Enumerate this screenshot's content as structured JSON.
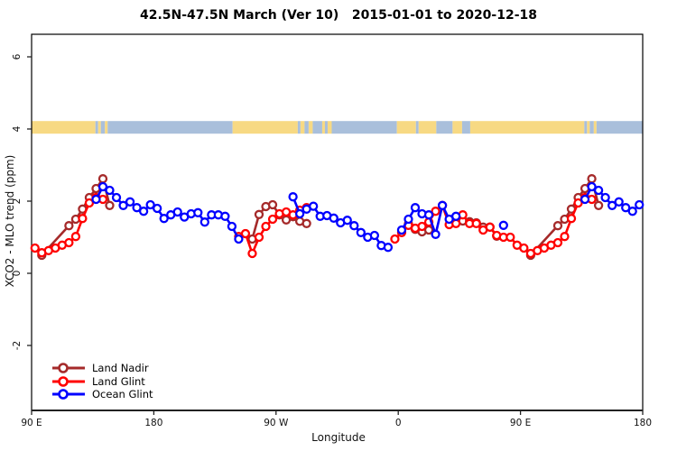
{
  "chart_data": {
    "type": "line",
    "title": "42.5N-47.5N March (Ver 10)   2015-01-01 to 2020-12-18",
    "xlabel": "Longitude",
    "ylabel": "XCO2 - MLO trend (ppm)",
    "grid": false,
    "x_axis": {
      "range_deg": [
        90,
        540
      ],
      "ticks": [
        {
          "deg": 90,
          "label": "90 E"
        },
        {
          "deg": 180,
          "label": "180"
        },
        {
          "deg": 270,
          "label": "90 W"
        },
        {
          "deg": 360,
          "label": "0"
        },
        {
          "deg": 450,
          "label": "90 E"
        },
        {
          "deg": 540,
          "label": "180"
        }
      ]
    },
    "y_axis": {
      "range": [
        -3.8,
        6.6
      ],
      "ticks": [
        -2,
        0,
        2,
        4,
        6
      ]
    },
    "legend": {
      "position": "bottom-left"
    },
    "map_strip": {
      "description": "land/ocean band of latitude zone drawn at y = 4 ppm",
      "y_range_ppm": [
        3.87,
        4.22
      ],
      "land_color": "#F7D983",
      "ocean_color": "#A9BFDB",
      "segments": [
        {
          "from": 90,
          "to": 137,
          "type": "land"
        },
        {
          "from": 137,
          "to": 139,
          "type": "ocean"
        },
        {
          "from": 139,
          "to": 141,
          "type": "land"
        },
        {
          "from": 141,
          "to": 144,
          "type": "ocean"
        },
        {
          "from": 144,
          "to": 146,
          "type": "land"
        },
        {
          "from": 146,
          "to": 238,
          "type": "ocean"
        },
        {
          "from": 238,
          "to": 286,
          "type": "land"
        },
        {
          "from": 286,
          "to": 288,
          "type": "ocean"
        },
        {
          "from": 288,
          "to": 291,
          "type": "land"
        },
        {
          "from": 291,
          "to": 294,
          "type": "ocean"
        },
        {
          "from": 294,
          "to": 297,
          "type": "land"
        },
        {
          "from": 297,
          "to": 304,
          "type": "ocean"
        },
        {
          "from": 304,
          "to": 306,
          "type": "land"
        },
        {
          "from": 306,
          "to": 308,
          "type": "ocean"
        },
        {
          "from": 308,
          "to": 311,
          "type": "land"
        },
        {
          "from": 311,
          "to": 359,
          "type": "ocean"
        },
        {
          "from": 359,
          "to": 373,
          "type": "land"
        },
        {
          "from": 373,
          "to": 375,
          "type": "ocean"
        },
        {
          "from": 375,
          "to": 388,
          "type": "land"
        },
        {
          "from": 388,
          "to": 400,
          "type": "ocean"
        },
        {
          "from": 400,
          "to": 407,
          "type": "land"
        },
        {
          "from": 407,
          "to": 413,
          "type": "ocean"
        },
        {
          "from": 413,
          "to": 497,
          "type": "land"
        },
        {
          "from": 497,
          "to": 499,
          "type": "ocean"
        },
        {
          "from": 499,
          "to": 501,
          "type": "land"
        },
        {
          "from": 501,
          "to": 504,
          "type": "ocean"
        },
        {
          "from": 504,
          "to": 506,
          "type": "land"
        },
        {
          "from": 506,
          "to": 540,
          "type": "ocean"
        }
      ]
    },
    "series": [
      {
        "name": "Land Nadir",
        "color": "#A52A2A",
        "marker": "open-circle",
        "segments": [
          [
            [
              97.5,
              0.5
            ],
            [
              117.5,
              1.32
            ],
            [
              122.5,
              1.5
            ],
            [
              127.5,
              1.78
            ],
            [
              132.5,
              2.1
            ],
            [
              137.5,
              2.35
            ],
            [
              142.5,
              2.62
            ],
            [
              147.5,
              1.88
            ]
          ],
          [
            [
              252.5,
              0.95
            ],
            [
              257.5,
              1.63
            ],
            [
              262.5,
              1.85
            ],
            [
              267.5,
              1.9
            ],
            [
              272.5,
              1.62
            ],
            [
              277.5,
              1.48
            ],
            [
              282.5,
              1.57
            ],
            [
              287.5,
              1.44
            ],
            [
              292.5,
              1.38
            ]
          ],
          [
            [
              367.5,
              1.37
            ],
            [
              372.5,
              1.22
            ],
            [
              377.5,
              1.15
            ],
            [
              382.5,
              1.2
            ]
          ],
          [
            [
              407.5,
              1.45
            ],
            [
              412.5,
              1.43
            ],
            [
              417.5,
              1.4
            ],
            [
              422.5,
              1.28
            ],
            [
              427.5,
              1.28
            ],
            [
              432.5,
              1.03
            ]
          ],
          [
            [
              457.5,
              0.5
            ],
            [
              477.5,
              1.32
            ],
            [
              482.5,
              1.5
            ],
            [
              487.5,
              1.78
            ],
            [
              492.5,
              2.1
            ],
            [
              497.5,
              2.35
            ],
            [
              502.5,
              2.62
            ],
            [
              507.5,
              1.88
            ]
          ]
        ]
      },
      {
        "name": "Land Glint",
        "color": "#FF0000",
        "marker": "open-circle",
        "segments": [
          [
            [
              92.5,
              0.7
            ],
            [
              97.5,
              0.57
            ],
            [
              102.5,
              0.63
            ],
            [
              107.5,
              0.7
            ],
            [
              112.5,
              0.78
            ],
            [
              117.5,
              0.85
            ],
            [
              122.5,
              1.02
            ],
            [
              127.5,
              1.52
            ],
            [
              132.5,
              1.95
            ],
            [
              137.5,
              2.1
            ],
            [
              142.5,
              2.05
            ]
          ],
          [
            [
              242.5,
              1.02
            ],
            [
              247.5,
              1.1
            ],
            [
              252.5,
              0.55
            ],
            [
              257.5,
              1.0
            ],
            [
              262.5,
              1.3
            ],
            [
              267.5,
              1.5
            ],
            [
              272.5,
              1.65
            ],
            [
              277.5,
              1.7
            ],
            [
              282.5,
              1.62
            ],
            [
              287.5,
              1.75
            ],
            [
              292.5,
              1.82
            ]
          ],
          [
            [
              357.5,
              0.95
            ],
            [
              362.5,
              1.13
            ],
            [
              367.5,
              1.33
            ],
            [
              372.5,
              1.25
            ],
            [
              377.5,
              1.3
            ],
            [
              382.5,
              1.42
            ],
            [
              387.5,
              1.72
            ],
            [
              392.5,
              1.88
            ],
            [
              397.5,
              1.35
            ],
            [
              402.5,
              1.38
            ],
            [
              407.5,
              1.62
            ],
            [
              412.5,
              1.38
            ],
            [
              417.5,
              1.38
            ],
            [
              422.5,
              1.2
            ],
            [
              427.5,
              1.28
            ],
            [
              432.5,
              1.05
            ],
            [
              437.5,
              1.0
            ],
            [
              442.5,
              1.0
            ],
            [
              447.5,
              0.78
            ],
            [
              452.5,
              0.7
            ],
            [
              457.5,
              0.55
            ],
            [
              462.5,
              0.63
            ],
            [
              467.5,
              0.7
            ],
            [
              472.5,
              0.78
            ],
            [
              477.5,
              0.85
            ],
            [
              482.5,
              1.02
            ],
            [
              487.5,
              1.52
            ],
            [
              492.5,
              1.95
            ],
            [
              497.5,
              2.1
            ],
            [
              502.5,
              2.05
            ]
          ]
        ]
      },
      {
        "name": "Ocean Glint",
        "color": "#0000FF",
        "marker": "open-circle",
        "segments": [
          [
            [
              137.5,
              2.05
            ],
            [
              142.5,
              2.4
            ],
            [
              147.5,
              2.3
            ],
            [
              152.5,
              2.1
            ],
            [
              157.5,
              1.88
            ],
            [
              162.5,
              1.98
            ],
            [
              167.5,
              1.82
            ],
            [
              172.5,
              1.72
            ],
            [
              177.5,
              1.9
            ],
            [
              182.5,
              1.8
            ],
            [
              187.5,
              1.52
            ],
            [
              192.5,
              1.62
            ],
            [
              197.5,
              1.7
            ],
            [
              202.5,
              1.56
            ],
            [
              207.5,
              1.65
            ],
            [
              212.5,
              1.68
            ],
            [
              217.5,
              1.42
            ],
            [
              222.5,
              1.62
            ],
            [
              227.5,
              1.62
            ],
            [
              232.5,
              1.58
            ],
            [
              237.5,
              1.3
            ],
            [
              242.5,
              0.95
            ]
          ],
          [
            [
              282.5,
              2.12
            ],
            [
              287.5,
              1.65
            ],
            [
              292.5,
              1.78
            ],
            [
              297.5,
              1.86
            ],
            [
              302.5,
              1.58
            ],
            [
              307.5,
              1.6
            ],
            [
              312.5,
              1.53
            ],
            [
              317.5,
              1.4
            ],
            [
              322.5,
              1.47
            ],
            [
              327.5,
              1.32
            ],
            [
              332.5,
              1.13
            ],
            [
              337.5,
              1.0
            ],
            [
              342.5,
              1.05
            ],
            [
              347.5,
              0.77
            ],
            [
              352.5,
              0.72
            ]
          ],
          [
            [
              362.5,
              1.2
            ],
            [
              367.5,
              1.5
            ],
            [
              372.5,
              1.82
            ],
            [
              377.5,
              1.65
            ],
            [
              382.5,
              1.62
            ],
            [
              387.5,
              1.08
            ],
            [
              392.5,
              1.88
            ],
            [
              397.5,
              1.5
            ],
            [
              402.5,
              1.58
            ]
          ],
          [
            [
              437.5,
              1.33
            ]
          ],
          [
            [
              497.5,
              2.05
            ],
            [
              502.5,
              2.4
            ],
            [
              507.5,
              2.3
            ],
            [
              512.5,
              2.1
            ],
            [
              517.5,
              1.88
            ],
            [
              522.5,
              1.98
            ],
            [
              527.5,
              1.82
            ],
            [
              532.5,
              1.72
            ],
            [
              537.5,
              1.9
            ]
          ]
        ]
      }
    ]
  }
}
